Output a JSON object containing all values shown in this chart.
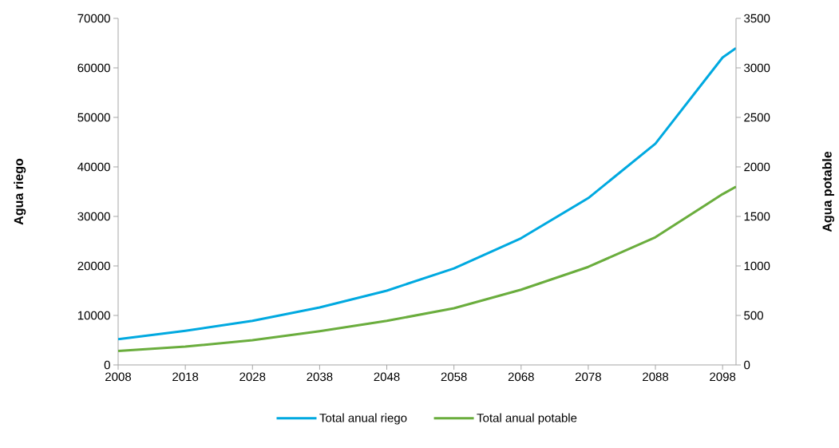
{
  "chart_data": {
    "type": "line",
    "ylabel": "Agua riego",
    "y2label": "Agua potable",
    "x": [
      2008,
      2018,
      2028,
      2038,
      2048,
      2058,
      2068,
      2078,
      2088,
      2098,
      2100
    ],
    "series": [
      {
        "name": "Total anual riego",
        "color": "#00a9e0",
        "values": [
          5200,
          6900,
          8900,
          11600,
          15000,
          19500,
          25600,
          33700,
          44700,
          62100,
          64000
        ]
      },
      {
        "name": "Total anual potable",
        "color": "#6aad3d",
        "axis": "y2",
        "values": [
          140,
          185,
          250,
          340,
          445,
          573,
          760,
          990,
          1290,
          1725,
          1800
        ]
      }
    ],
    "xlim": [
      2008,
      2100
    ],
    "xticks": [
      2008,
      2018,
      2028,
      2038,
      2048,
      2058,
      2068,
      2078,
      2088,
      2098
    ],
    "ylim": [
      0,
      70000
    ],
    "yticks": [
      0,
      10000,
      20000,
      30000,
      40000,
      50000,
      60000,
      70000
    ],
    "y2lim": [
      0,
      3500
    ],
    "y2ticks": [
      0,
      500,
      1000,
      1500,
      2000,
      2500,
      3000,
      3500
    ],
    "grid": false,
    "legend": "bottom",
    "marker": "none",
    "line_style": "solid"
  }
}
